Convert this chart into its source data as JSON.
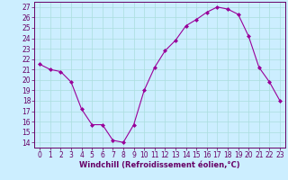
{
  "x": [
    0,
    1,
    2,
    3,
    4,
    5,
    6,
    7,
    8,
    9,
    10,
    11,
    12,
    13,
    14,
    15,
    16,
    17,
    18,
    19,
    20,
    21,
    22,
    23
  ],
  "y": [
    21.5,
    21.0,
    20.8,
    19.8,
    17.2,
    15.7,
    15.7,
    14.2,
    14.0,
    15.7,
    19.0,
    21.2,
    22.8,
    23.8,
    25.2,
    25.8,
    26.5,
    27.0,
    26.8,
    26.3,
    24.2,
    21.2,
    19.8,
    18.0
  ],
  "line_color": "#990099",
  "marker": "D",
  "marker_size": 2.0,
  "bg_color": "#cceeff",
  "grid_color": "#aadddd",
  "xlabel": "Windchill (Refroidissement éolien,°C)",
  "xlabel_fontsize": 6.0,
  "tick_fontsize": 5.5,
  "ylim": [
    13.5,
    27.5
  ],
  "yticks": [
    14,
    15,
    16,
    17,
    18,
    19,
    20,
    21,
    22,
    23,
    24,
    25,
    26,
    27
  ],
  "xticks": [
    0,
    1,
    2,
    3,
    4,
    5,
    6,
    7,
    8,
    9,
    10,
    11,
    12,
    13,
    14,
    15,
    16,
    17,
    18,
    19,
    20,
    21,
    22,
    23
  ]
}
